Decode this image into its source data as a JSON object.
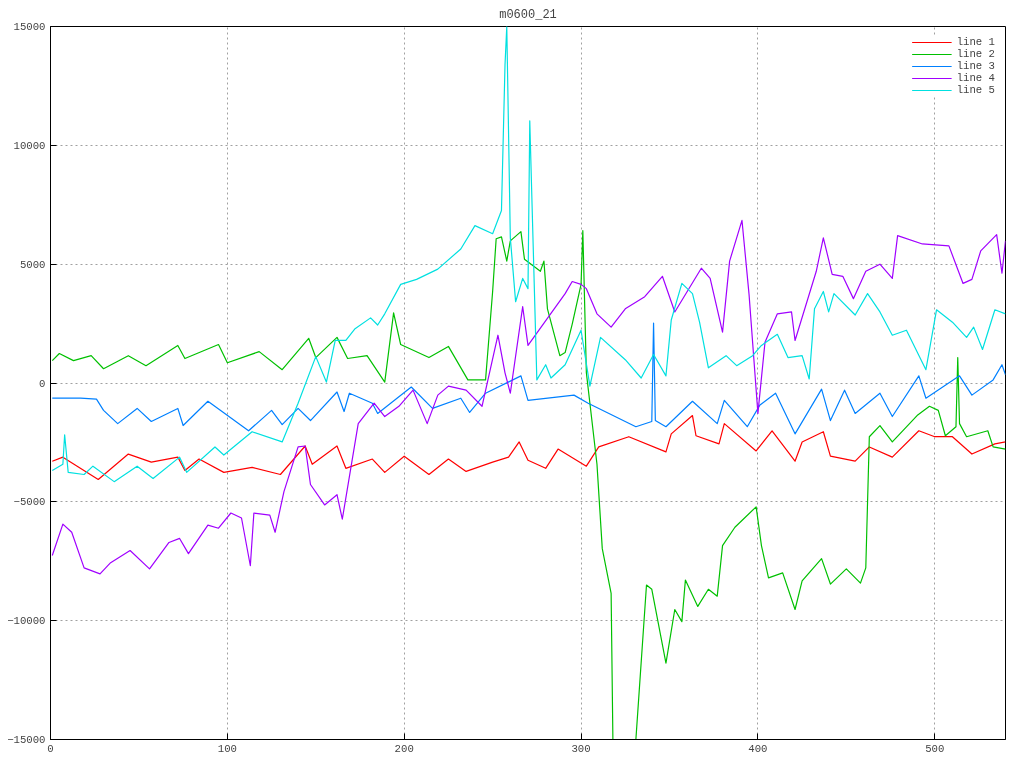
{
  "chart_data": {
    "type": "line",
    "title": "m0600_21",
    "xlim": [
      0,
      540
    ],
    "ylim": [
      -15000,
      15000
    ],
    "xticks": [
      0,
      100,
      200,
      300,
      400,
      500
    ],
    "yticks": [
      -15000,
      -10000,
      -5000,
      0,
      5000,
      10000,
      15000
    ],
    "grid": true,
    "legend": "top right",
    "line_style": "solid",
    "marker": "none",
    "series": [
      {
        "name": "line 1",
        "color": "#ff0000",
        "x": [
          1,
          7,
          27,
          44,
          57,
          72,
          76,
          84,
          98,
          114,
          130,
          144,
          148,
          162,
          167,
          182,
          189,
          200,
          214,
          225,
          235,
          250,
          259,
          265,
          270,
          280,
          287,
          303,
          310,
          327,
          348,
          351,
          363,
          365,
          378,
          381,
          399,
          408,
          421,
          425,
          437,
          441,
          455,
          463,
          476,
          491,
          500,
          510,
          521,
          534,
          540
        ],
        "values": [
          -3290,
          -3120,
          -4060,
          -2990,
          -3330,
          -3120,
          -3680,
          -3200,
          -3760,
          -3550,
          -3850,
          -2650,
          -3420,
          -2650,
          -3590,
          -3200,
          -3760,
          -3080,
          -3850,
          -3200,
          -3720,
          -3330,
          -3120,
          -2480,
          -3250,
          -3590,
          -2780,
          -3500,
          -2690,
          -2260,
          -2900,
          -2140,
          -1370,
          -2220,
          -2560,
          -1710,
          -2860,
          -2010,
          -3290,
          -2480,
          -2050,
          -3080,
          -3290,
          -2690,
          -3120,
          -2010,
          -2260,
          -2260,
          -2990,
          -2560,
          -2480
        ]
      },
      {
        "name": "line 2",
        "color": "#00c000",
        "x": [
          1,
          5,
          13,
          23,
          30,
          44,
          54,
          72,
          76,
          95,
          100,
          118,
          131,
          146,
          150,
          162,
          168,
          179,
          189,
          194,
          198,
          214,
          225,
          236,
          246,
          250,
          252,
          255,
          258,
          260,
          266,
          268,
          277,
          279,
          281,
          288,
          291,
          295,
          300,
          301,
          303,
          309,
          312,
          317,
          318,
          331,
          337,
          340,
          348,
          353,
          357,
          359,
          366,
          372,
          377,
          380,
          387,
          399,
          402,
          406,
          414,
          421,
          425,
          436,
          441,
          450,
          458,
          461,
          463,
          469,
          476,
          490,
          497,
          502,
          506,
          512,
          513,
          514,
          518,
          530,
          533,
          540
        ],
        "values": [
          940,
          1240,
          940,
          1150,
          600,
          1150,
          730,
          1580,
          1030,
          1620,
          850,
          1320,
          560,
          1880,
          1070,
          1920,
          1030,
          1150,
          40,
          2950,
          1620,
          1070,
          1540,
          130,
          130,
          3850,
          6070,
          6150,
          5130,
          5980,
          6370,
          5210,
          4700,
          5130,
          3120,
          1150,
          1280,
          2480,
          4150,
          6410,
          430,
          -3420,
          -6970,
          -8850,
          -15000,
          -15000,
          -8500,
          -8680,
          -11790,
          -9530,
          -10040,
          -8290,
          -9400,
          -8680,
          -8970,
          -6840,
          -6070,
          -5210,
          -6840,
          -8200,
          -7990,
          -9530,
          -8330,
          -7390,
          -8460,
          -7820,
          -8420,
          -7780,
          -2260,
          -1790,
          -2480,
          -1370,
          -980,
          -1150,
          -2220,
          -1840,
          1070,
          -1710,
          -2260,
          -2010,
          -2690,
          -2780
        ]
      },
      {
        "name": "line 3",
        "color": "#0080ff",
        "x": [
          1,
          17,
          26,
          30,
          38,
          49,
          57,
          72,
          75,
          89,
          112,
          125,
          131,
          140,
          147,
          162,
          166,
          169,
          182,
          185,
          204,
          216,
          232,
          237,
          246,
          266,
          270,
          296,
          304,
          331,
          340,
          341,
          342,
          348,
          363,
          377,
          381,
          394,
          401,
          410,
          421,
          436,
          441,
          449,
          455,
          469,
          476,
          491,
          495,
          514,
          521,
          533,
          538,
          540
        ],
        "values": [
          -640,
          -640,
          -680,
          -1150,
          -1710,
          -1070,
          -1620,
          -1070,
          -1790,
          -770,
          -2010,
          -1150,
          -1750,
          -1070,
          -1580,
          -380,
          -1200,
          -430,
          -850,
          -1280,
          -170,
          -1070,
          -640,
          -1240,
          -430,
          300,
          -730,
          -510,
          -850,
          -1840,
          -1620,
          2520,
          -1580,
          -1840,
          -770,
          -1710,
          -730,
          -1840,
          -940,
          -430,
          -2140,
          -260,
          -1580,
          -300,
          -1280,
          -430,
          -1410,
          300,
          -640,
          300,
          -510,
          130,
          770,
          340
        ]
      },
      {
        "name": "line 4",
        "color": "#a000ff",
        "x": [
          1,
          7,
          12,
          19,
          28,
          34,
          45,
          56,
          67,
          73,
          78,
          89,
          95,
          102,
          108,
          113,
          115,
          124,
          127,
          132,
          140,
          144,
          147,
          155,
          162,
          165,
          174,
          183,
          189,
          197,
          205,
          213,
          219,
          225,
          235,
          244,
          253,
          257,
          260,
          267,
          270,
          291,
          295,
          300,
          303,
          309,
          317,
          325,
          336,
          346,
          353,
          368,
          373,
          380,
          384,
          391,
          395,
          400,
          404,
          411,
          419,
          421,
          433,
          437,
          442,
          448,
          454,
          461,
          469,
          476,
          479,
          493,
          508,
          516,
          521,
          526,
          535,
          538,
          540
        ],
        "values": [
          -7260,
          -5940,
          -6280,
          -7780,
          -8030,
          -7560,
          -7050,
          -7820,
          -6710,
          -6540,
          -7180,
          -5980,
          -6110,
          -5470,
          -5680,
          -7690,
          -5470,
          -5560,
          -6280,
          -4570,
          -2690,
          -2650,
          -4270,
          -5130,
          -4700,
          -5730,
          -1710,
          -850,
          -1410,
          -980,
          -300,
          -1710,
          -510,
          -130,
          -300,
          -980,
          2010,
          430,
          -430,
          3210,
          1580,
          3760,
          4270,
          4150,
          3970,
          2910,
          2350,
          3120,
          3630,
          4490,
          2990,
          4830,
          4400,
          2140,
          5130,
          6840,
          3720,
          -1280,
          1710,
          2910,
          2990,
          1790,
          4700,
          6110,
          4570,
          4490,
          3550,
          4700,
          5000,
          4400,
          6200,
          5850,
          5770,
          4190,
          4360,
          5560,
          6240,
          4620,
          5980
        ]
      },
      {
        "name": "line 5",
        "color": "#00e0e0",
        "x": [
          1,
          7,
          8,
          10,
          19,
          24,
          36,
          49,
          58,
          73,
          77,
          93,
          98,
          114,
          131,
          140,
          150,
          156,
          161,
          167,
          172,
          181,
          185,
          189,
          198,
          207,
          219,
          232,
          240,
          250,
          255,
          257,
          258,
          260,
          263,
          267,
          270,
          271,
          275,
          280,
          283,
          291,
          300,
          305,
          311,
          325,
          334,
          341,
          348,
          351,
          357,
          363,
          367,
          372,
          382,
          388,
          397,
          402,
          411,
          417,
          425,
          429,
          432,
          437,
          440,
          443,
          455,
          462,
          469,
          476,
          484,
          495,
          501,
          510,
          518,
          522,
          527,
          534,
          540
        ],
        "values": [
          -3680,
          -3420,
          -2180,
          -3760,
          -3850,
          -3500,
          -4150,
          -3500,
          -4020,
          -3120,
          -3760,
          -2690,
          -3030,
          -2050,
          -2480,
          -850,
          1110,
          40,
          1790,
          1790,
          2270,
          2740,
          2440,
          2910,
          4150,
          4360,
          4790,
          5640,
          6620,
          6280,
          7260,
          13380,
          15000,
          6110,
          3420,
          4400,
          3970,
          11030,
          130,
          770,
          210,
          770,
          2220,
          -130,
          1920,
          980,
          210,
          1200,
          300,
          2650,
          4190,
          3760,
          2560,
          640,
          1150,
          730,
          1150,
          1580,
          2050,
          1070,
          1150,
          170,
          3120,
          3850,
          2990,
          3760,
          2860,
          3760,
          2990,
          2010,
          2220,
          560,
          3080,
          2560,
          1920,
          2350,
          1410,
          3080,
          2910
        ]
      }
    ]
  }
}
